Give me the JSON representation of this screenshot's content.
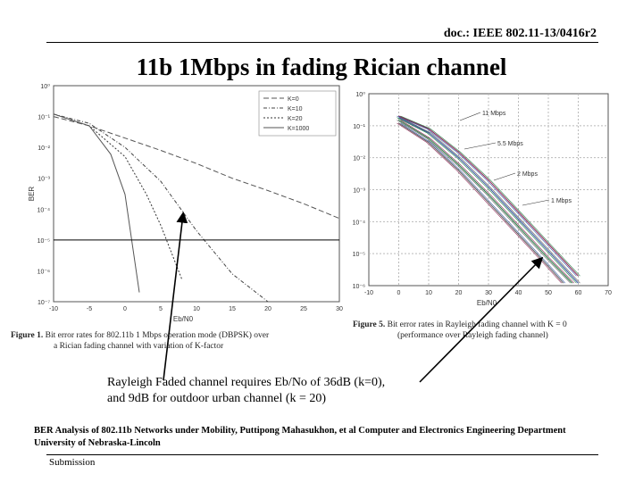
{
  "header": {
    "doc_id": "doc.: IEEE 802.11-13/0416r2"
  },
  "slide": {
    "title": "11b 1Mbps in fading Rician channel"
  },
  "fig1": {
    "caption_num": "Figure 1.",
    "caption_text_a": "Bit error rates for 802.11b 1 Mbps operation mode (DBPSK) over",
    "caption_text_b": "a Rician fading channel with variation of K-factor",
    "ylabel": "BER",
    "xlabel": "Eb/N0",
    "yticks": [
      "10⁰",
      "10⁻¹",
      "10⁻²",
      "10⁻³",
      "10⁻⁴",
      "10⁻⁵",
      "10⁻⁶",
      "10⁻⁷"
    ],
    "xticks": [
      "-10",
      "-5",
      "0",
      "5",
      "10",
      "15",
      "20",
      "25",
      "30"
    ],
    "legend": [
      "K=0",
      "K=10",
      "K=20",
      "K=1000"
    ]
  },
  "fig2": {
    "caption_num": "Figure 5.",
    "caption_text_a": "Bit error rates in Rayleigh fading channel with K = 0",
    "caption_text_b": "(performance over Rayleigh fading channel)",
    "xlabel": "Eb/N0",
    "yticks": [
      "10⁰",
      "10⁻¹",
      "10⁻²",
      "10⁻³",
      "10⁻⁴",
      "10⁻⁵",
      "10⁻⁶"
    ],
    "xticks": [
      "-10",
      "0",
      "10",
      "20",
      "30",
      "40",
      "50",
      "60",
      "70"
    ],
    "annotations": [
      "11 Mbps",
      "5.5 Mbps",
      "2 Mbps",
      "1 Mbps"
    ]
  },
  "note": {
    "line1": "Rayleigh Faded channel requires Eb/No of 36dB (k=0),",
    "line2": "and 9dB for outdoor urban channel (k = 20)"
  },
  "reference": {
    "line1": "BER Analysis of 802.11b Networks under Mobility, Puttipong Mahasukhon, et al Computer and Electronics Engineering Department",
    "line2": "University of Nebraska-Lincoln"
  },
  "footer": {
    "label": "Submission"
  },
  "chart_data": [
    {
      "type": "line",
      "title": "",
      "ylabel": "BER",
      "xlabel": "Eb/N0",
      "ylog": true,
      "xlim": [
        -10,
        30
      ],
      "ylim": [
        1e-07,
        1
      ],
      "series": [
        {
          "name": "K=0",
          "x": [
            -10,
            -5,
            0,
            5,
            10,
            15,
            20,
            25,
            30
          ],
          "y": [
            0.1,
            0.05,
            0.02,
            0.008,
            0.003,
            0.001,
            0.0004,
            0.00015,
            5e-05
          ]
        },
        {
          "name": "K=10",
          "x": [
            -10,
            -5,
            0,
            5,
            10,
            15,
            20
          ],
          "y": [
            0.12,
            0.06,
            0.01,
            0.0008,
            2e-05,
            8e-07,
            1e-07
          ]
        },
        {
          "name": "K=20",
          "x": [
            -10,
            -5,
            0,
            3,
            5,
            8
          ],
          "y": [
            0.12,
            0.05,
            0.005,
            0.0003,
            3e-05,
            5e-07
          ]
        },
        {
          "name": "K=1000",
          "x": [
            -10,
            -5,
            -2,
            0,
            2
          ],
          "y": [
            0.12,
            0.05,
            0.006,
            0.0003,
            2e-07
          ]
        }
      ]
    },
    {
      "type": "line",
      "xlabel": "Eb/N0",
      "ylog": true,
      "xlim": [
        -10,
        70
      ],
      "ylim": [
        1e-06,
        1
      ],
      "series": [
        {
          "name": "11 Mbps",
          "x": [
            0,
            10,
            20,
            30,
            40,
            50,
            60
          ],
          "y": [
            0.2,
            0.08,
            0.015,
            0.002,
            0.0002,
            2e-05,
            2e-06
          ]
        },
        {
          "name": "5.5 Mbps",
          "x": [
            0,
            10,
            20,
            30,
            40,
            50,
            60
          ],
          "y": [
            0.18,
            0.06,
            0.01,
            0.0012,
            0.00012,
            1.2e-05,
            1.2e-06
          ]
        },
        {
          "name": "2 Mbps",
          "x": [
            0,
            10,
            20,
            30,
            40,
            50,
            58
          ],
          "y": [
            0.15,
            0.04,
            0.006,
            0.0007,
            7e-05,
            7e-06,
            1.2e-06
          ]
        },
        {
          "name": "1 Mbps",
          "x": [
            0,
            10,
            20,
            30,
            40,
            50,
            55
          ],
          "y": [
            0.12,
            0.03,
            0.004,
            0.0004,
            4e-05,
            4e-06,
            1.2e-06
          ]
        }
      ]
    }
  ]
}
